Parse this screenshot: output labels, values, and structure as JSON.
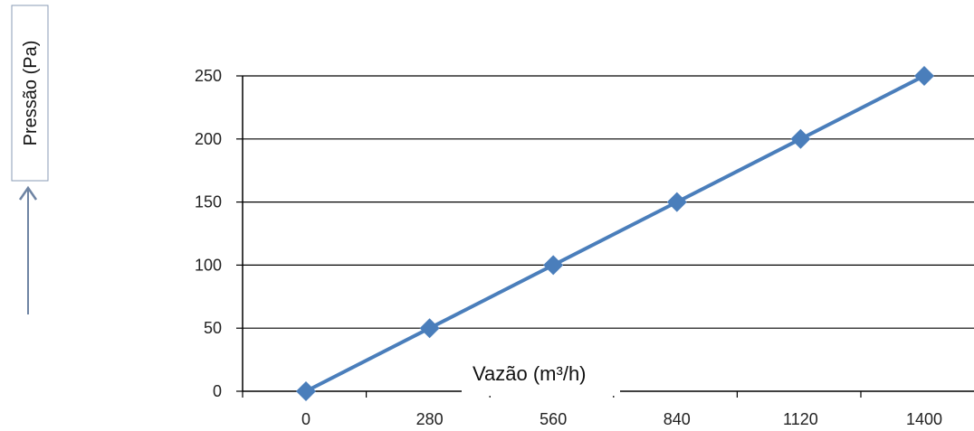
{
  "chart_data": {
    "type": "line",
    "x": [
      0,
      280,
      560,
      840,
      1120,
      1400
    ],
    "series": [
      {
        "values": [
          0,
          50,
          100,
          150,
          200,
          250
        ]
      }
    ],
    "x_tick_labels": [
      "0",
      "280",
      "560",
      "840",
      "1120",
      "1400"
    ],
    "y_tick_labels": [
      "0",
      "50",
      "100",
      "150",
      "200",
      "250"
    ],
    "ylim": [
      0,
      250
    ],
    "xlabel": "Vazão (m³/h)",
    "ylabel": "Pressão (Pa)",
    "grid": true,
    "colors": {
      "line": "#4a7ebb",
      "marker": "#4a7ebb",
      "grid": "#000000",
      "arrow": "#6e84a3"
    }
  }
}
